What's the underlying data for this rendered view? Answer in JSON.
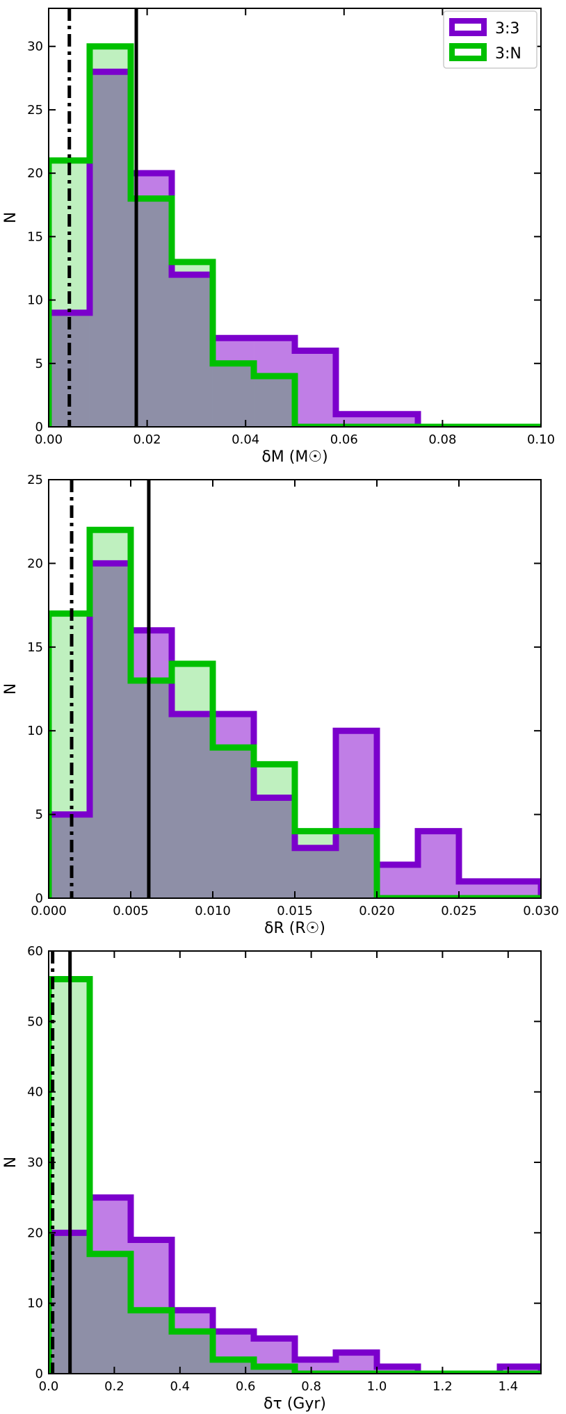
{
  "chart_data": [
    {
      "type": "histogram",
      "xlabel": "δM (M☉)",
      "ylabel": "N",
      "xlim": [
        0,
        0.1
      ],
      "ylim": [
        0,
        33
      ],
      "xticks": [
        "0.00",
        "0.02",
        "0.04",
        "0.06",
        "0.08",
        "0.10"
      ],
      "yticks": [
        "0",
        "5",
        "10",
        "15",
        "20",
        "25",
        "30"
      ],
      "legend": {
        "position": "top-right",
        "entries": [
          "3:3",
          "3:N"
        ]
      },
      "series": [
        {
          "name": "3:3",
          "edges": [
            0,
            0.00833,
            0.01667,
            0.025,
            0.03333,
            0.04167,
            0.05,
            0.05833,
            0.06667,
            0.075,
            0.08333,
            0.09167,
            0.1
          ],
          "counts": [
            9,
            28,
            20,
            12,
            7,
            7,
            6,
            1,
            1,
            0,
            0,
            0
          ]
        },
        {
          "name": "3:N",
          "edges": [
            0,
            0.00833,
            0.01667,
            0.025,
            0.03333,
            0.04167,
            0.05,
            0.05833,
            0.06667,
            0.075,
            0.08333,
            0.09167,
            0.1
          ],
          "counts": [
            21,
            30,
            18,
            13,
            5,
            4,
            0,
            0,
            0,
            0,
            0,
            0
          ]
        }
      ],
      "vlines": [
        {
          "style": "dashdot",
          "x": 0.0042
        },
        {
          "style": "solid",
          "x": 0.0178
        }
      ]
    },
    {
      "type": "histogram",
      "xlabel": "δR (R☉)",
      "ylabel": "N",
      "xlim": [
        0,
        0.03
      ],
      "ylim": [
        0,
        25
      ],
      "xticks": [
        "0.000",
        "0.005",
        "0.010",
        "0.015",
        "0.020",
        "0.025",
        "0.030"
      ],
      "yticks": [
        "0",
        "5",
        "10",
        "15",
        "20",
        "25"
      ],
      "series": [
        {
          "name": "3:3",
          "edges": [
            0,
            0.0025,
            0.005,
            0.0075,
            0.01,
            0.0125,
            0.015,
            0.0175,
            0.02,
            0.0225,
            0.025,
            0.0275,
            0.03
          ],
          "counts": [
            5,
            20,
            16,
            11,
            11,
            6,
            3,
            10,
            2,
            4,
            1,
            1
          ]
        },
        {
          "name": "3:N",
          "edges": [
            0,
            0.0025,
            0.005,
            0.0075,
            0.01,
            0.0125,
            0.015,
            0.0175,
            0.02,
            0.0225,
            0.025,
            0.0275,
            0.03
          ],
          "counts": [
            17,
            22,
            13,
            14,
            9,
            8,
            4,
            4,
            0,
            0,
            0,
            0
          ]
        }
      ],
      "vlines": [
        {
          "style": "dashdot",
          "x": 0.0014
        },
        {
          "style": "solid",
          "x": 0.0061
        }
      ]
    },
    {
      "type": "histogram",
      "xlabel": "δτ (Gyr)",
      "ylabel": "N",
      "xlim": [
        0,
        1.5
      ],
      "ylim": [
        0,
        60
      ],
      "xticks": [
        "0.0",
        "0.2",
        "0.4",
        "0.6",
        "0.8",
        "1.0",
        "1.2",
        "1.4"
      ],
      "yticks": [
        "0",
        "10",
        "20",
        "30",
        "40",
        "50",
        "60"
      ],
      "series": [
        {
          "name": "3:3",
          "edges": [
            0,
            0.125,
            0.25,
            0.375,
            0.5,
            0.625,
            0.75,
            0.875,
            1.0,
            1.125,
            1.25,
            1.375,
            1.5
          ],
          "counts": [
            20,
            25,
            19,
            9,
            6,
            5,
            2,
            3,
            1,
            0,
            0,
            1
          ]
        },
        {
          "name": "3:N",
          "edges": [
            0,
            0.125,
            0.25,
            0.375,
            0.5,
            0.625,
            0.75,
            0.875,
            1.0,
            1.125,
            1.25,
            1.375,
            1.5
          ],
          "counts": [
            56,
            17,
            9,
            6,
            2,
            1,
            0,
            0,
            0,
            0,
            0,
            0
          ]
        }
      ],
      "vlines": [
        {
          "style": "dashdot",
          "x": 0.012
        },
        {
          "style": "solid",
          "x": 0.065
        }
      ]
    }
  ],
  "colors": {
    "series_3_3_edge": "#7b00cc",
    "series_3_3_fill": "#c07ee6",
    "series_3_N_edge": "#00c000",
    "series_3_N_fill": "#bff0bf",
    "overlap_fill": "#8e8fa7"
  }
}
